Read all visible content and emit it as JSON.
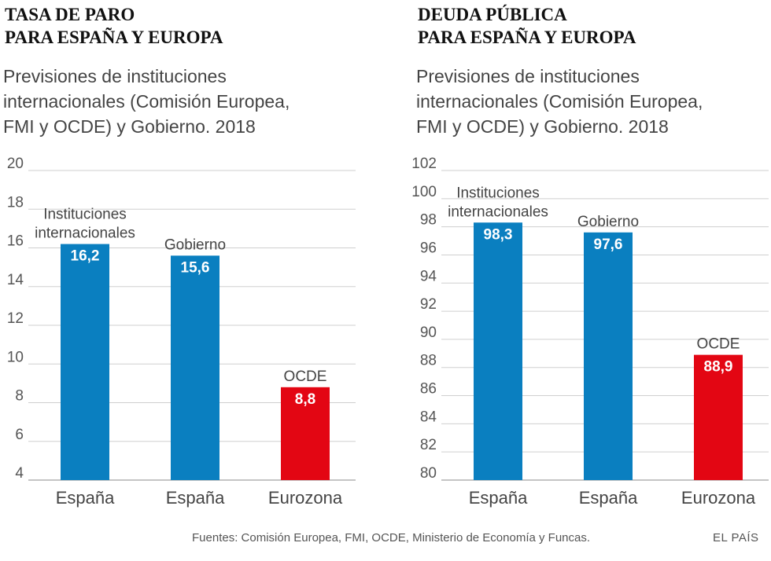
{
  "chart_data": [
    {
      "type": "bar",
      "title": [
        "TASA DE PARO",
        "PARA ESPAÑA Y EUROPA"
      ],
      "subtitle": [
        "Previsiones de instituciones",
        "internacionales (Comisión Europea,",
        "FMI y OCDE) y Gobierno. 2018"
      ],
      "categories": [
        "España",
        "España",
        "Eurozona"
      ],
      "values": [
        16.2,
        15.6,
        8.8
      ],
      "value_labels": [
        "16,2",
        "15,6",
        "8,8"
      ],
      "bar_labels": [
        [
          "Instituciones",
          "internacionales"
        ],
        [
          "Gobierno"
        ],
        [
          "OCDE"
        ]
      ],
      "colors": [
        "#0a7fc0",
        "#0a7fc0",
        "#e30613"
      ],
      "ylim": [
        4,
        20
      ],
      "yticks": [
        "4",
        "6",
        "8",
        "10",
        "12",
        "14",
        "16",
        "18",
        "20"
      ],
      "grid": true,
      "xlabel": "",
      "ylabel": ""
    },
    {
      "type": "bar",
      "title": [
        "DEUDA PÚBLICA",
        "PARA ESPAÑA Y EUROPA"
      ],
      "subtitle": [
        "Previsiones de instituciones",
        "internacionales (Comisión Europea,",
        "FMI y OCDE) y Gobierno. 2018"
      ],
      "categories": [
        "España",
        "España",
        "Eurozona"
      ],
      "values": [
        98.3,
        97.6,
        88.9
      ],
      "value_labels": [
        "98,3",
        "97,6",
        "88,9"
      ],
      "bar_labels": [
        [
          "Instituciones",
          "internacionales"
        ],
        [
          "Gobierno"
        ],
        [
          "OCDE"
        ]
      ],
      "colors": [
        "#0a7fc0",
        "#0a7fc0",
        "#e30613"
      ],
      "ylim": [
        80,
        102
      ],
      "yticks": [
        "80",
        "82",
        "84",
        "86",
        "88",
        "90",
        "92",
        "94",
        "96",
        "98",
        "100",
        "102"
      ],
      "grid": true,
      "xlabel": "",
      "ylabel": ""
    }
  ],
  "footer": {
    "source": "Fuentes: Comisión Europea, FMI, OCDE, Ministerio de Economía y Funcas.",
    "brand": "EL PAÍS"
  }
}
